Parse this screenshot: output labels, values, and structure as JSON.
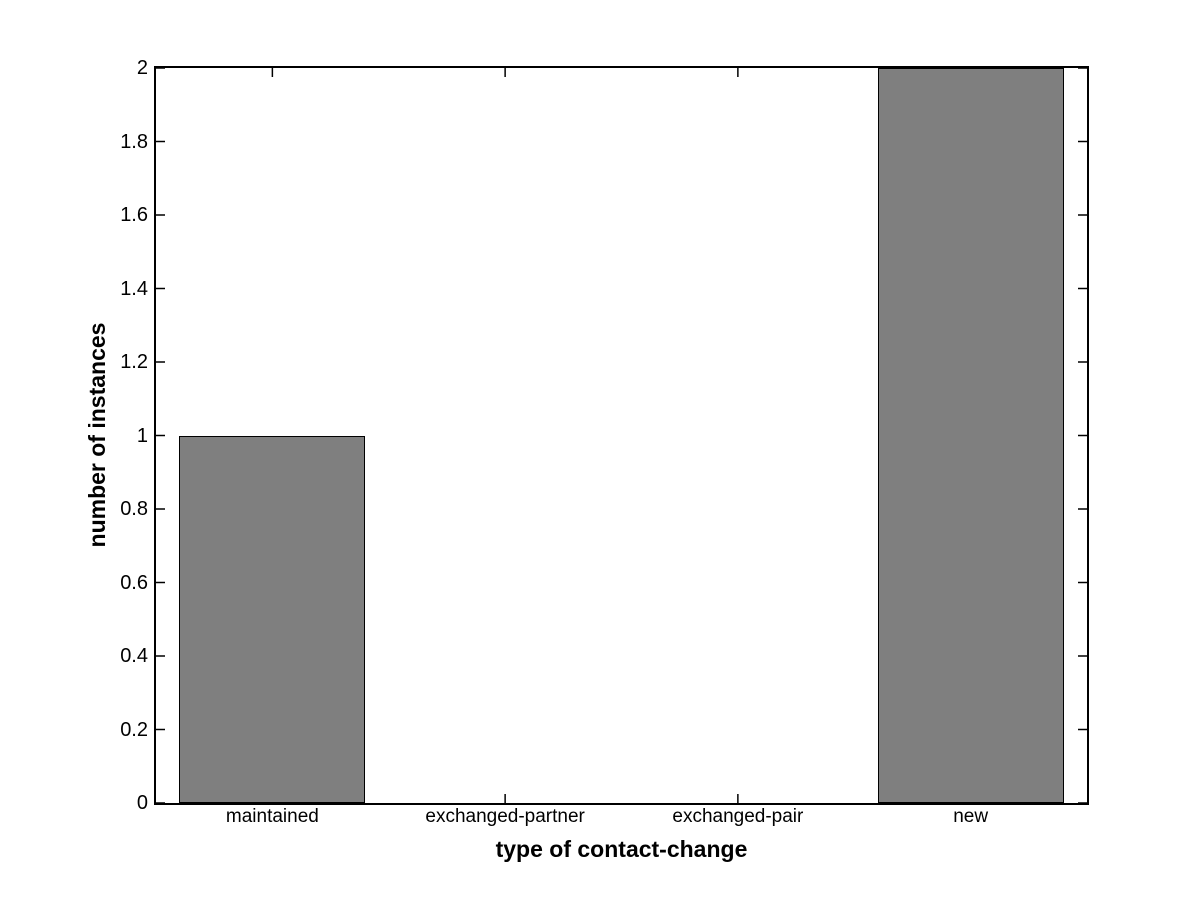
{
  "chart_data": {
    "type": "bar",
    "title": "",
    "categories": [
      "maintained",
      "exchanged-partner",
      "exchanged-pair",
      "new"
    ],
    "values": [
      1,
      0,
      0,
      2
    ],
    "xlabel": "type of contact-change",
    "ylabel": "number of instances",
    "ylim": [
      0,
      2
    ],
    "yticks": [
      0,
      0.2,
      0.4,
      0.6,
      0.8,
      1,
      1.2,
      1.4,
      1.6,
      1.8,
      2
    ],
    "ytick_labels": [
      "0",
      "0.2",
      "0.4",
      "0.6",
      "0.8",
      "1",
      "1.2",
      "1.4",
      "1.6",
      "1.8",
      "2"
    ],
    "bar_width_fraction": 0.8,
    "grid": false,
    "legend": null,
    "colors": {
      "bar_fill": "#7f7f7f",
      "bar_edge": "#000000",
      "axis": "#000000",
      "background": "#ffffff",
      "text": "#000000"
    }
  }
}
